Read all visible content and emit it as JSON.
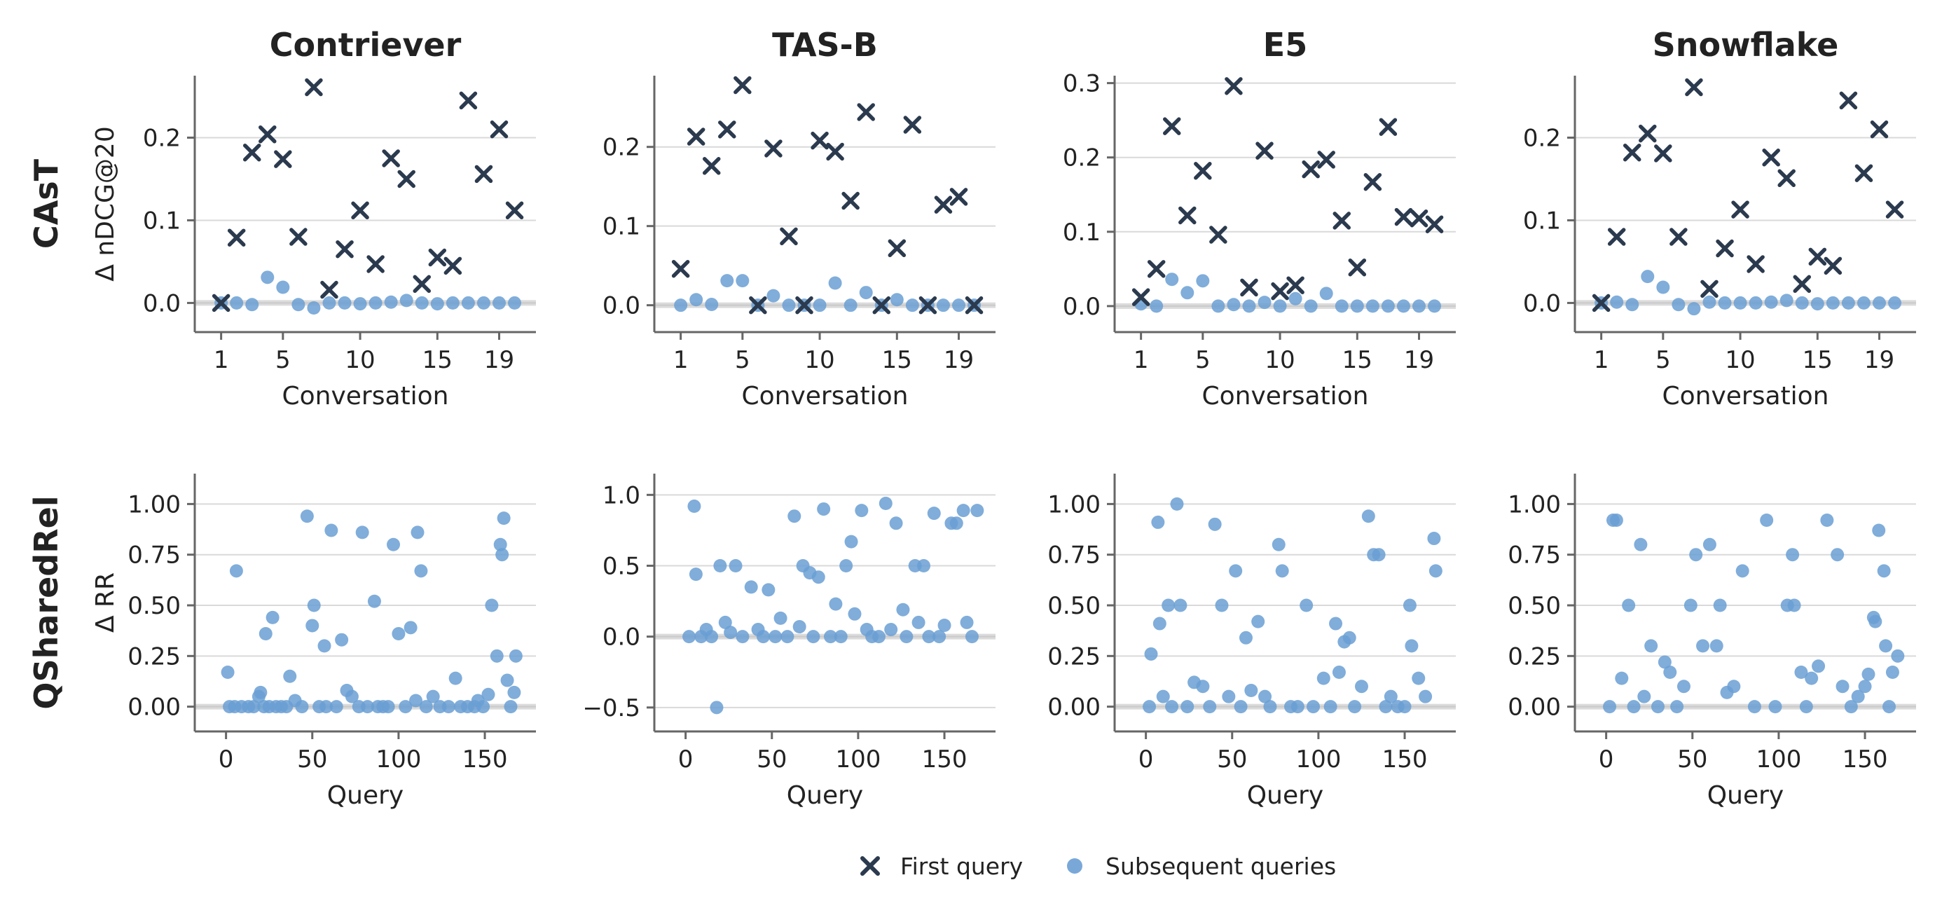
{
  "legend": {
    "items": [
      {
        "label": "First query",
        "marker": "x",
        "color": "#2b3a4e"
      },
      {
        "label": "Subsequent queries",
        "marker": "circle",
        "color": "#6a9fd4"
      }
    ]
  },
  "colors": {
    "first": "#2b3a4e",
    "subsequent": "#6a9fd4"
  },
  "chart_data": [
    {
      "type": "scatter",
      "title": "Contriever",
      "row_label": "CAsT",
      "xlabel": "Conversation",
      "ylabel": "Δ nDCG@20",
      "xlim": [
        0.2,
        21.2
      ],
      "ylim": [
        -0.02,
        0.275
      ],
      "xticks": [
        1,
        5,
        10,
        15,
        19
      ],
      "yticks": [
        0.0,
        0.1,
        0.2
      ],
      "ytick_labels": [
        "0.0",
        "0.1",
        "0.2"
      ],
      "series": [
        {
          "name": "First query",
          "marker": "x",
          "x": [
            1,
            2,
            3,
            4,
            5,
            6,
            7,
            8,
            9,
            10,
            11,
            12,
            13,
            14,
            15,
            16,
            17,
            18,
            19,
            20
          ],
          "y": [
            0.0,
            0.079,
            0.182,
            0.204,
            0.174,
            0.08,
            0.261,
            0.016,
            0.065,
            0.112,
            0.047,
            0.175,
            0.15,
            0.023,
            0.055,
            0.045,
            0.245,
            0.156,
            0.21,
            0.112
          ]
        },
        {
          "name": "Subsequent queries",
          "marker": "circle",
          "x": [
            1,
            2,
            3,
            4,
            5,
            6,
            7,
            8,
            9,
            10,
            11,
            12,
            13,
            14,
            15,
            16,
            17,
            18,
            19,
            20
          ],
          "y": [
            0.0,
            0.0,
            -0.002,
            0.031,
            0.019,
            -0.002,
            -0.006,
            0.0,
            0.0,
            -0.001,
            0.0,
            0.001,
            0.003,
            0.0,
            -0.001,
            0.0,
            0.0,
            0.0,
            0.0,
            0.0
          ]
        }
      ]
    },
    {
      "type": "scatter",
      "title": "TAS-B",
      "row_label": "",
      "xlabel": "Conversation",
      "ylabel": "",
      "xlim": [
        0.2,
        21.2
      ],
      "ylim": [
        -0.018,
        0.29
      ],
      "xticks": [
        1,
        5,
        10,
        15,
        19
      ],
      "yticks": [
        0.0,
        0.1,
        0.2
      ],
      "ytick_labels": [
        "0.0",
        "0.1",
        "0.2"
      ],
      "series": [
        {
          "name": "First query",
          "marker": "x",
          "x": [
            1,
            2,
            3,
            4,
            5,
            6,
            7,
            8,
            9,
            10,
            11,
            12,
            13,
            14,
            15,
            16,
            17,
            18,
            19,
            20
          ],
          "y": [
            0.046,
            0.213,
            0.176,
            0.222,
            0.278,
            0.0,
            0.198,
            0.087,
            0.0,
            0.208,
            0.194,
            0.132,
            0.244,
            0.0,
            0.072,
            0.228,
            0.0,
            0.127,
            0.137,
            0.0
          ]
        },
        {
          "name": "Subsequent queries",
          "marker": "circle",
          "x": [
            1,
            2,
            3,
            4,
            5,
            6,
            7,
            8,
            9,
            10,
            11,
            12,
            13,
            14,
            15,
            16,
            17,
            18,
            19,
            20
          ],
          "y": [
            0.0,
            0.007,
            0.001,
            0.031,
            0.031,
            0.0,
            0.012,
            0.0,
            0.0,
            0.0,
            0.028,
            0.0,
            0.016,
            0.0,
            0.007,
            0.0,
            0.0,
            0.0,
            0.0,
            0.0
          ]
        }
      ]
    },
    {
      "type": "scatter",
      "title": "E5",
      "row_label": "",
      "xlabel": "Conversation",
      "ylabel": "",
      "xlim": [
        0.2,
        21.2
      ],
      "ylim": [
        -0.018,
        0.31
      ],
      "xticks": [
        1,
        5,
        10,
        15,
        19
      ],
      "yticks": [
        0.0,
        0.1,
        0.2,
        0.3
      ],
      "ytick_labels": [
        "0.0",
        "0.1",
        "0.2",
        "0.3"
      ],
      "series": [
        {
          "name": "First query",
          "marker": "x",
          "x": [
            1,
            2,
            3,
            4,
            5,
            6,
            7,
            8,
            9,
            10,
            11,
            12,
            13,
            14,
            15,
            16,
            17,
            18,
            19,
            20
          ],
          "y": [
            0.012,
            0.05,
            0.242,
            0.122,
            0.182,
            0.096,
            0.296,
            0.025,
            0.209,
            0.02,
            0.028,
            0.184,
            0.197,
            0.115,
            0.052,
            0.167,
            0.241,
            0.12,
            0.118,
            0.11
          ]
        },
        {
          "name": "Subsequent queries",
          "marker": "circle",
          "x": [
            1,
            2,
            3,
            4,
            5,
            6,
            7,
            8,
            9,
            10,
            11,
            12,
            13,
            14,
            15,
            16,
            17,
            18,
            19,
            20
          ],
          "y": [
            0.003,
            0.0,
            0.036,
            0.018,
            0.034,
            0.0,
            0.002,
            0.0,
            0.005,
            0.0,
            0.01,
            0.0,
            0.017,
            0.0,
            0.0,
            0.0,
            0.0,
            0.0,
            0.0,
            0.0
          ]
        }
      ]
    },
    {
      "type": "scatter",
      "title": "Snowflake",
      "row_label": "",
      "xlabel": "Conversation",
      "ylabel": "",
      "xlim": [
        0.2,
        21.2
      ],
      "ylim": [
        -0.02,
        0.275
      ],
      "xticks": [
        1,
        5,
        10,
        15,
        19
      ],
      "yticks": [
        0.0,
        0.1,
        0.2
      ],
      "ytick_labels": [
        "0.0",
        "0.1",
        "0.2"
      ],
      "series": [
        {
          "name": "First query",
          "marker": "x",
          "x": [
            1,
            2,
            3,
            4,
            5,
            6,
            7,
            8,
            9,
            10,
            11,
            12,
            13,
            14,
            15,
            16,
            17,
            18,
            19,
            20
          ],
          "y": [
            0.0,
            0.08,
            0.182,
            0.205,
            0.181,
            0.08,
            0.261,
            0.017,
            0.066,
            0.113,
            0.047,
            0.176,
            0.151,
            0.023,
            0.056,
            0.045,
            0.245,
            0.157,
            0.21,
            0.113
          ]
        },
        {
          "name": "Subsequent queries",
          "marker": "circle",
          "x": [
            1,
            2,
            3,
            4,
            5,
            6,
            7,
            8,
            9,
            10,
            11,
            12,
            13,
            14,
            15,
            16,
            17,
            18,
            19,
            20
          ],
          "y": [
            0.0,
            0.001,
            -0.002,
            0.032,
            0.019,
            -0.002,
            -0.007,
            0.001,
            0.0,
            0.0,
            0.0,
            0.001,
            0.003,
            0.0,
            -0.001,
            0.0,
            0.0,
            0.0,
            0.0,
            0.0
          ]
        }
      ]
    },
    {
      "type": "scatter",
      "title": "",
      "row_label": "QSharedRel",
      "xlabel": "Query",
      "ylabel": "Δ RR",
      "xlim": [
        -10,
        178
      ],
      "ylim": [
        -0.06,
        1.15
      ],
      "xticks": [
        0,
        50,
        100,
        150
      ],
      "yticks": [
        0.0,
        0.25,
        0.5,
        0.75,
        1.0
      ],
      "ytick_labels": [
        "0.00",
        "0.25",
        "0.50",
        "0.75",
        "1.00"
      ],
      "series": [
        {
          "name": "Subsequent queries",
          "marker": "circle",
          "x": [
            1,
            6,
            20,
            23,
            27,
            37,
            47,
            50,
            51,
            57,
            61,
            67,
            70,
            79,
            86,
            97,
            100,
            107,
            111,
            113,
            154,
            157,
            159,
            160,
            161,
            168,
            2,
            5,
            9,
            13,
            16,
            19,
            22,
            25,
            29,
            32,
            35,
            40,
            44,
            54,
            58,
            64,
            73,
            77,
            82,
            88,
            91,
            94,
            104,
            110,
            116,
            120,
            124,
            129,
            133,
            136,
            140,
            144,
            146,
            149,
            152,
            163,
            165,
            167
          ],
          "y": [
            0.17,
            0.67,
            0.07,
            0.36,
            0.44,
            0.15,
            0.94,
            0.4,
            0.5,
            0.3,
            0.87,
            0.33,
            0.08,
            0.86,
            0.52,
            0.8,
            0.36,
            0.39,
            0.86,
            0.67,
            0.5,
            0.25,
            0.8,
            0.75,
            0.93,
            0.25,
            0.0,
            0.0,
            0.0,
            0.0,
            0.0,
            0.05,
            0.0,
            0.0,
            0.0,
            0.0,
            0.0,
            0.03,
            0.0,
            0.0,
            0.0,
            0.0,
            0.05,
            0.0,
            0.0,
            0.0,
            0.0,
            0.0,
            0.0,
            0.03,
            0.0,
            0.05,
            0.0,
            0.0,
            0.14,
            0.0,
            0.0,
            0.0,
            0.03,
            0.0,
            0.06,
            0.13,
            0.0,
            0.07
          ]
        }
      ]
    },
    {
      "type": "scatter",
      "title": "",
      "row_label": "",
      "xlabel": "Query",
      "ylabel": "",
      "xlim": [
        -10,
        178
      ],
      "ylim": [
        -0.58,
        1.15
      ],
      "xticks": [
        0,
        50,
        100,
        150
      ],
      "yticks": [
        -0.5,
        0.0,
        0.5,
        1.0
      ],
      "ytick_labels": [
        "−0.5",
        "0.0",
        "0.5",
        "1.0"
      ],
      "series": [
        {
          "name": "Subsequent queries",
          "marker": "circle",
          "x": [
            5,
            6,
            18,
            20,
            23,
            29,
            38,
            48,
            55,
            63,
            68,
            72,
            77,
            80,
            87,
            93,
            96,
            98,
            102,
            116,
            122,
            126,
            133,
            138,
            144,
            154,
            157,
            161,
            163,
            169,
            2,
            9,
            12,
            15,
            26,
            33,
            42,
            45,
            52,
            59,
            66,
            74,
            84,
            90,
            105,
            108,
            112,
            119,
            128,
            135,
            141,
            147,
            150,
            166
          ],
          "y": [
            0.92,
            0.44,
            -0.5,
            0.5,
            0.1,
            0.5,
            0.35,
            0.33,
            0.13,
            0.85,
            0.5,
            0.45,
            0.42,
            0.9,
            0.23,
            0.5,
            0.67,
            0.16,
            0.89,
            0.94,
            0.8,
            0.19,
            0.5,
            0.5,
            0.87,
            0.8,
            0.8,
            0.89,
            0.1,
            0.89,
            0.0,
            0.0,
            0.05,
            0.0,
            0.03,
            0.0,
            0.05,
            0.0,
            0.0,
            0.0,
            0.07,
            0.0,
            0.0,
            0.0,
            0.05,
            0.0,
            0.0,
            0.05,
            0.0,
            0.1,
            0.0,
            0.0,
            0.08,
            0.0
          ]
        }
      ]
    },
    {
      "type": "scatter",
      "title": "",
      "row_label": "",
      "xlabel": "Query",
      "ylabel": "",
      "xlim": [
        -10,
        178
      ],
      "ylim": [
        -0.06,
        1.15
      ],
      "xticks": [
        0,
        50,
        100,
        150
      ],
      "yticks": [
        0.0,
        0.25,
        0.5,
        0.75,
        1.0
      ],
      "ytick_labels": [
        "0.00",
        "0.25",
        "0.50",
        "0.75",
        "1.00"
      ],
      "series": [
        {
          "name": "Subsequent queries",
          "marker": "circle",
          "x": [
            3,
            7,
            8,
            13,
            18,
            20,
            40,
            44,
            52,
            58,
            65,
            77,
            79,
            93,
            103,
            110,
            112,
            118,
            129,
            132,
            135,
            153,
            154,
            167,
            168,
            2,
            10,
            15,
            24,
            28,
            33,
            37,
            48,
            55,
            61,
            69,
            72,
            84,
            88,
            97,
            107,
            115,
            121,
            125,
            139,
            142,
            146,
            150,
            158,
            162
          ],
          "y": [
            0.26,
            0.91,
            0.41,
            0.5,
            1.0,
            0.5,
            0.9,
            0.5,
            0.67,
            0.34,
            0.42,
            0.8,
            0.67,
            0.5,
            0.14,
            0.41,
            0.17,
            0.34,
            0.94,
            0.75,
            0.75,
            0.5,
            0.3,
            0.83,
            0.67,
            0.0,
            0.05,
            0.0,
            0.0,
            0.12,
            0.1,
            0.0,
            0.05,
            0.0,
            0.08,
            0.05,
            0.0,
            0.0,
            0.0,
            0.0,
            0.0,
            0.32,
            0.0,
            0.1,
            0.0,
            0.05,
            0.0,
            0.0,
            0.14,
            0.05
          ]
        }
      ]
    },
    {
      "type": "scatter",
      "title": "",
      "row_label": "",
      "xlabel": "Query",
      "ylabel": "",
      "xlim": [
        -10,
        178
      ],
      "ylim": [
        -0.06,
        1.15
      ],
      "xticks": [
        0,
        50,
        100,
        150
      ],
      "yticks": [
        0.0,
        0.25,
        0.5,
        0.75,
        1.0
      ],
      "ytick_labels": [
        "0.00",
        "0.25",
        "0.50",
        "0.75",
        "1.00"
      ],
      "series": [
        {
          "name": "Subsequent queries",
          "marker": "circle",
          "x": [
            4,
            6,
            13,
            20,
            26,
            34,
            37,
            49,
            52,
            56,
            60,
            64,
            66,
            74,
            79,
            93,
            105,
            108,
            109,
            113,
            123,
            128,
            134,
            155,
            156,
            158,
            161,
            162,
            166,
            169,
            2,
            9,
            16,
            22,
            30,
            41,
            45,
            70,
            86,
            98,
            116,
            119,
            137,
            142,
            146,
            150,
            152,
            164
          ],
          "y": [
            0.92,
            0.92,
            0.5,
            0.8,
            0.3,
            0.22,
            0.17,
            0.5,
            0.75,
            0.3,
            0.8,
            0.3,
            0.5,
            0.1,
            0.67,
            0.92,
            0.5,
            0.75,
            0.5,
            0.17,
            0.2,
            0.92,
            0.75,
            0.44,
            0.42,
            0.87,
            0.67,
            0.3,
            0.17,
            0.25,
            0.0,
            0.14,
            0.0,
            0.05,
            0.0,
            0.0,
            0.1,
            0.07,
            0.0,
            0.0,
            0.0,
            0.14,
            0.1,
            0.0,
            0.05,
            0.1,
            0.16,
            0.0
          ]
        }
      ]
    }
  ]
}
